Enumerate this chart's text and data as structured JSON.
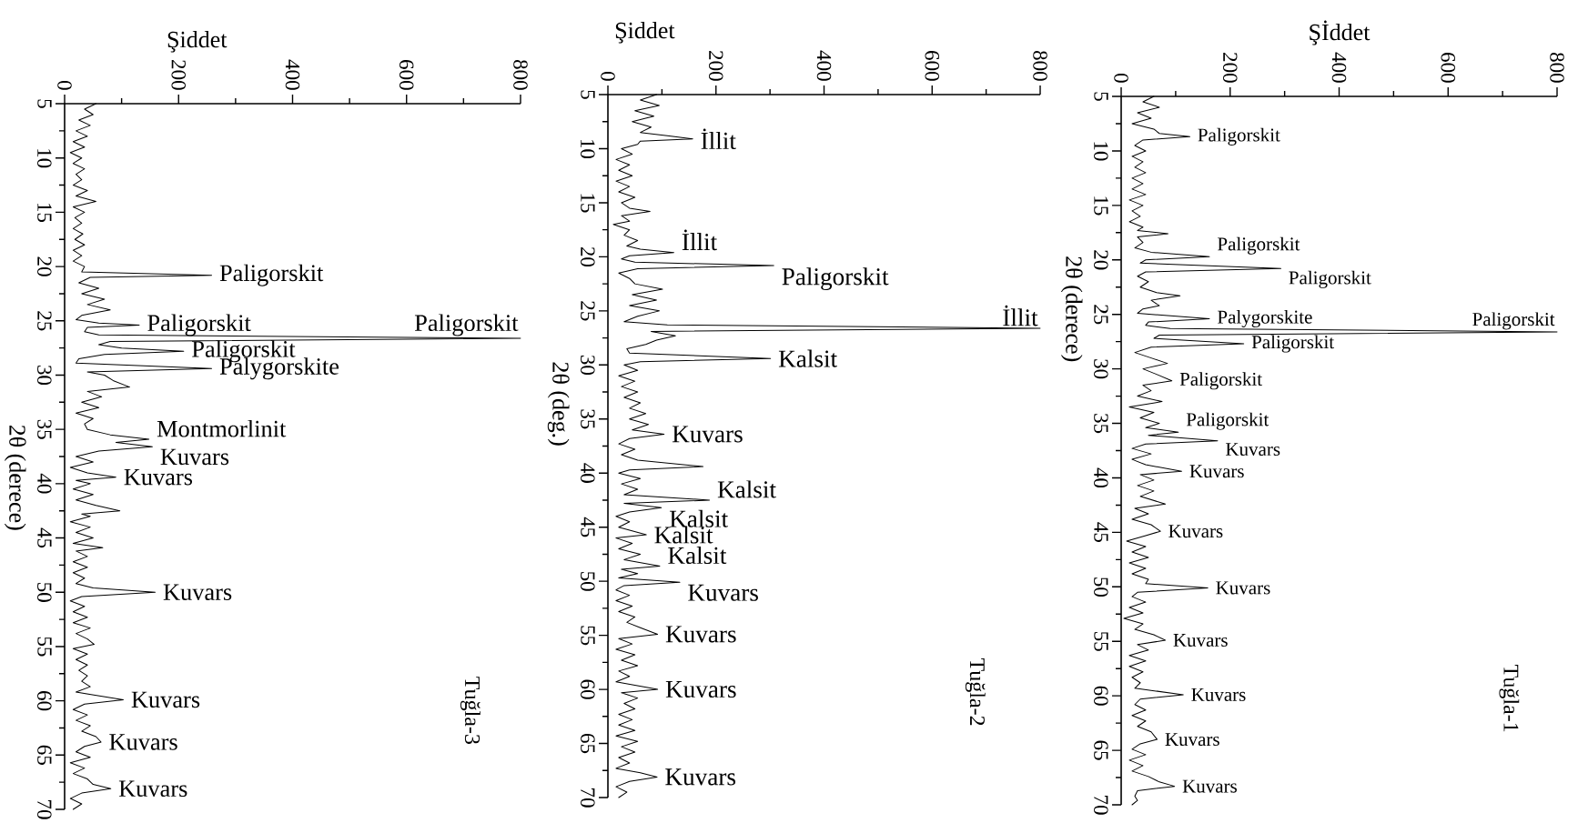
{
  "chart_data": [
    {
      "type": "line",
      "xlabel": "Şiddet",
      "ylabel": "2θ (derece)",
      "xlim": [
        0,
        800
      ],
      "ylim": [
        70,
        5
      ],
      "marker": "none",
      "line_style": "solid",
      "xticks": [
        {
          "value": 0,
          "label": "0"
        },
        {
          "value": 100,
          "label": null
        },
        {
          "value": 200,
          "label": "200"
        },
        {
          "value": 300,
          "label": null
        },
        {
          "value": 400,
          "label": "400"
        },
        {
          "value": 500,
          "label": null
        },
        {
          "value": 600,
          "label": "600"
        },
        {
          "value": 700,
          "label": null
        },
        {
          "value": 800,
          "label": "800"
        }
      ],
      "yticks": [
        {
          "value": 5,
          "label": "5"
        },
        {
          "value": 7.5,
          "label": null
        },
        {
          "value": 10,
          "label": "10"
        },
        {
          "value": 12.5,
          "label": null
        },
        {
          "value": 15,
          "label": "15"
        },
        {
          "value": 17.5,
          "label": null
        },
        {
          "value": 20,
          "label": "20"
        },
        {
          "value": 22.5,
          "label": null
        },
        {
          "value": 25,
          "label": "25"
        },
        {
          "value": 27.5,
          "label": null
        },
        {
          "value": 30,
          "label": "30"
        },
        {
          "value": 32.5,
          "label": null
        },
        {
          "value": 35,
          "label": "35"
        },
        {
          "value": 37.5,
          "label": null
        },
        {
          "value": 40,
          "label": "40"
        },
        {
          "value": 42.5,
          "label": null
        },
        {
          "value": 45,
          "label": "45"
        },
        {
          "value": 47.5,
          "label": null
        },
        {
          "value": 50,
          "label": "50"
        },
        {
          "value": 52.5,
          "label": null
        },
        {
          "value": 55,
          "label": "55"
        },
        {
          "value": 57.5,
          "label": null
        },
        {
          "value": 60,
          "label": "60"
        },
        {
          "value": 62.5,
          "label": null
        },
        {
          "value": 65,
          "label": "65"
        },
        {
          "value": 67.5,
          "label": null
        },
        {
          "value": 70,
          "label": "70"
        }
      ],
      "series": [
        {
          "color": "#000000",
          "values": [
            5,
            5.5,
            6,
            6.5,
            7,
            7.5,
            8,
            8.5,
            9,
            9.5,
            10,
            10.5,
            11,
            11.5,
            12,
            12.5,
            13,
            13.5,
            14,
            14.5,
            15,
            15.5,
            16,
            16.5,
            17,
            17.5,
            18,
            18.5,
            19,
            19.5,
            20,
            20.5,
            20.8,
            21,
            21.5,
            22,
            22.5,
            23,
            23.5,
            24,
            24.5,
            24.9,
            25.2,
            25.4,
            25.6,
            26,
            26.3,
            26.6,
            26.9,
            27.2,
            27.5,
            27.8,
            28.1,
            28.5,
            28.9,
            29.4,
            29.7,
            30,
            30.5,
            31.1,
            31.5,
            32,
            32.5,
            33,
            33.5,
            34,
            34.5,
            35,
            35.5,
            35.9,
            36.2,
            36.6,
            37,
            37.5,
            38,
            38.5,
            39,
            39.4,
            39.7,
            40,
            40.5,
            41,
            41.5,
            42,
            42.5,
            42.8,
            43,
            43.5,
            44,
            44.5,
            45,
            45.5,
            45.9,
            46.2,
            46.7,
            47.2,
            47.7,
            48.2,
            48.7,
            49.2,
            49.6,
            50,
            50.4,
            50.8,
            51.3,
            51.8,
            52.3,
            52.8,
            53.3,
            53.8,
            54.3,
            54.8,
            55.2,
            55.7,
            56.2,
            56.7,
            57.2,
            57.7,
            58.2,
            58.7,
            59.2,
            59.9,
            60.3,
            60.8,
            61.3,
            61.8,
            62.3,
            62.8,
            63.3,
            63.8,
            64.2,
            64.7,
            65.2,
            65.7,
            66.2,
            66.7,
            67.2,
            67.7,
            68.1,
            68.5,
            69,
            69.5,
            70
          ],
          "x": [
            55,
            35,
            50,
            25,
            45,
            20,
            40,
            15,
            35,
            10,
            30,
            15,
            35,
            20,
            30,
            15,
            40,
            20,
            55,
            15,
            35,
            18,
            30,
            15,
            32,
            18,
            35,
            15,
            30,
            15,
            35,
            30,
            258,
            45,
            25,
            60,
            30,
            70,
            40,
            80,
            30,
            20,
            60,
            131,
            40,
            35,
            60,
            800,
            80,
            60,
            100,
            209,
            70,
            25,
            20,
            258,
            40,
            70,
            85,
            114,
            40,
            65,
            30,
            60,
            20,
            50,
            35,
            40,
            80,
            148,
            90,
            154,
            60,
            20,
            50,
            10,
            40,
            90,
            20,
            45,
            15,
            50,
            20,
            55,
            97,
            30,
            45,
            10,
            45,
            20,
            50,
            15,
            67,
            20,
            40,
            15,
            40,
            15,
            35,
            20,
            50,
            159,
            30,
            10,
            35,
            15,
            40,
            15,
            45,
            20,
            40,
            52,
            15,
            40,
            20,
            40,
            25,
            40,
            30,
            45,
            20,
            103,
            35,
            15,
            40,
            20,
            45,
            30,
            55,
            64,
            35,
            20,
            45,
            10,
            35,
            15,
            40,
            50,
            81,
            30,
            10,
            30,
            15
          ]
        }
      ],
      "annotations": [
        {
          "text": "Paligorskit",
          "x": 258,
          "y": 20.8
        },
        {
          "text": "Paligorskit",
          "x": 131,
          "y": 25.4
        },
        {
          "text": "Paligorskit",
          "x": 800,
          "y": 26.6
        },
        {
          "text": "Paligorskit",
          "x": 209,
          "y": 27.8
        },
        {
          "text": "Palygorskite",
          "x": 258,
          "y": 29.4
        },
        {
          "text": "Montmorlinit",
          "x": 148,
          "y": 35.9
        },
        {
          "text": "Kuvars",
          "x": 154,
          "y": 36.6
        },
        {
          "text": "Kuvars",
          "x": 90,
          "y": 39.4
        },
        {
          "text": "Kuvars",
          "x": 159,
          "y": 50
        },
        {
          "text": "Kuvars",
          "x": 103,
          "y": 59.9
        },
        {
          "text": "Kuvars",
          "x": 64,
          "y": 63.8
        },
        {
          "text": "Kuvars",
          "x": 81,
          "y": 68.1
        },
        "Tuğla-3"
      ]
    },
    {
      "type": "line",
      "xlabel": "Şiddet",
      "ylabel": "2θ (deg.)",
      "xlim": [
        0,
        800
      ],
      "ylim": [
        70,
        5
      ],
      "marker": "none",
      "line_style": "solid",
      "xticks": [
        {
          "value": 0,
          "label": "0"
        },
        {
          "value": 100,
          "label": null
        },
        {
          "value": 200,
          "label": "200"
        },
        {
          "value": 300,
          "label": null
        },
        {
          "value": 400,
          "label": "400"
        },
        {
          "value": 500,
          "label": null
        },
        {
          "value": 600,
          "label": "600"
        },
        {
          "value": 700,
          "label": null
        },
        {
          "value": 800,
          "label": "800"
        }
      ],
      "yticks": [
        {
          "value": 5,
          "label": "5"
        },
        {
          "value": 7.5,
          "label": null
        },
        {
          "value": 10,
          "label": "10"
        },
        {
          "value": 12.5,
          "label": null
        },
        {
          "value": 15,
          "label": "15"
        },
        {
          "value": 17.5,
          "label": null
        },
        {
          "value": 20,
          "label": "20"
        },
        {
          "value": 22.5,
          "label": null
        },
        {
          "value": 25,
          "label": "25"
        },
        {
          "value": 27.5,
          "label": null
        },
        {
          "value": 30,
          "label": "30"
        },
        {
          "value": 32.5,
          "label": null
        },
        {
          "value": 35,
          "label": "35"
        },
        {
          "value": 37.5,
          "label": null
        },
        {
          "value": 40,
          "label": "40"
        },
        {
          "value": 42.5,
          "label": null
        },
        {
          "value": 45,
          "label": "45"
        },
        {
          "value": 47.5,
          "label": null
        },
        {
          "value": 50,
          "label": "50"
        },
        {
          "value": 52.5,
          "label": null
        },
        {
          "value": 55,
          "label": "55"
        },
        {
          "value": 57.5,
          "label": null
        },
        {
          "value": 60,
          "label": "60"
        },
        {
          "value": 62.5,
          "label": null
        },
        {
          "value": 65,
          "label": "65"
        },
        {
          "value": 67.5,
          "label": null
        },
        {
          "value": 70,
          "label": "70"
        }
      ],
      "series": [
        {
          "color": "#000000",
          "values": [
            5,
            5.5,
            6,
            6.5,
            7,
            7.5,
            8,
            8.5,
            8.8,
            9.1,
            9.3,
            9.6,
            10,
            10.5,
            11,
            11.5,
            12,
            12.5,
            13,
            13.5,
            14,
            14.5,
            15,
            15.5,
            15.8,
            16.2,
            16.7,
            17,
            17.5,
            18,
            18.5,
            19,
            19.3,
            19.6,
            19.9,
            20.2,
            20.5,
            20.8,
            21.1,
            21.5,
            22,
            22.5,
            23,
            23.5,
            24,
            24.5,
            25,
            25.5,
            26,
            26.3,
            26.6,
            26.9,
            27.3,
            27.7,
            28.1,
            28.5,
            28.9,
            29.4,
            29.7,
            30,
            30.5,
            31,
            31.5,
            32,
            32.5,
            33,
            33.5,
            34,
            34.5,
            35,
            35.5,
            36,
            36.4,
            36.8,
            37.3,
            37.8,
            38.3,
            38.8,
            39.4,
            39.7,
            40,
            40.5,
            41,
            41.5,
            42,
            42.5,
            42.8,
            43.2,
            43.6,
            44,
            44.5,
            45,
            45.7,
            46,
            46.5,
            47,
            47.5,
            48,
            48.6,
            48.9,
            49.3,
            49.7,
            50.1,
            50.4,
            50.8,
            51.3,
            51.8,
            52.3,
            52.8,
            53.3,
            53.8,
            54.3,
            54.9,
            55.3,
            55.8,
            56.3,
            56.8,
            57.3,
            57.8,
            58.3,
            58.8,
            59.3,
            60,
            60.3,
            60.8,
            61.3,
            61.8,
            62.3,
            62.8,
            63.3,
            63.8,
            64.3,
            64.8,
            65.3,
            65.8,
            66.3,
            66.8,
            67.3,
            67.7,
            68.1,
            68.5,
            69,
            69.5,
            70
          ],
          "x": [
            90,
            60,
            95,
            50,
            85,
            45,
            80,
            60,
            110,
            157,
            60,
            55,
            25,
            45,
            15,
            40,
            20,
            45,
            15,
            40,
            20,
            50,
            25,
            40,
            78,
            25,
            40,
            10,
            40,
            30,
            55,
            35,
            60,
            122,
            40,
            25,
            50,
            307,
            55,
            20,
            40,
            50,
            101,
            45,
            90,
            40,
            95,
            55,
            30,
            110,
            800,
            80,
            125,
            90,
            70,
            35,
            40,
            301,
            60,
            30,
            55,
            20,
            50,
            25,
            55,
            30,
            60,
            40,
            70,
            40,
            75,
            45,
            104,
            40,
            20,
            50,
            25,
            55,
            176,
            40,
            20,
            60,
            25,
            55,
            30,
            188,
            30,
            99,
            40,
            15,
            40,
            20,
            71,
            15,
            45,
            20,
            60,
            30,
            96,
            25,
            55,
            20,
            133,
            30,
            15,
            40,
            15,
            45,
            20,
            50,
            35,
            60,
            92,
            20,
            45,
            15,
            50,
            25,
            55,
            20,
            40,
            15,
            92,
            25,
            55,
            30,
            50,
            20,
            45,
            20,
            50,
            15,
            55,
            25,
            50,
            20,
            40,
            15,
            60,
            91,
            40,
            15,
            35,
            20
          ]
        }
      ],
      "annotations": [
        {
          "text": "İllit",
          "x": 157,
          "y": 9.1
        },
        {
          "text": "İllit",
          "x": 122,
          "y": 19.6
        },
        {
          "text": "Paligorskit",
          "x": 307,
          "y": 20.8
        },
        {
          "text": "İllit",
          "x": 800,
          "y": 26.6
        },
        {
          "text": "Kalsit",
          "x": 301,
          "y": 29.4
        },
        {
          "text": "Kuvars",
          "x": 104,
          "y": 36.4
        },
        {
          "text": "Kalsit",
          "x": 188,
          "y": 42.5
        },
        {
          "text": "Kalsit",
          "x": 99,
          "y": 43.2
        },
        {
          "text": "Kalsit",
          "x": 71,
          "y": 45.7
        },
        {
          "text": "Kalsit",
          "x": 96,
          "y": 48.6
        },
        {
          "text": "Kuvars",
          "x": 133,
          "y": 50.1
        },
        {
          "text": "Kuvars",
          "x": 92,
          "y": 54.9
        },
        {
          "text": "Kuvars",
          "x": 92,
          "y": 60
        },
        {
          "text": "Kuvars",
          "x": 91,
          "y": 68.1
        },
        "Tuğla-2"
      ]
    },
    {
      "type": "line",
      "xlabel": "Şİddet",
      "ylabel": "2θ (derece)",
      "xlim": [
        0,
        800
      ],
      "ylim": [
        70,
        5
      ],
      "marker": "none",
      "line_style": "solid",
      "xticks": [
        {
          "value": 0,
          "label": "0"
        },
        {
          "value": 100,
          "label": null
        },
        {
          "value": 200,
          "label": "200"
        },
        {
          "value": 300,
          "label": null
        },
        {
          "value": 400,
          "label": "400"
        },
        {
          "value": 500,
          "label": null
        },
        {
          "value": 600,
          "label": "600"
        },
        {
          "value": 700,
          "label": null
        },
        {
          "value": 800,
          "label": "800"
        }
      ],
      "yticks": [
        {
          "value": 5,
          "label": "5"
        },
        {
          "value": 7.5,
          "label": null
        },
        {
          "value": 10,
          "label": "10"
        },
        {
          "value": 12.5,
          "label": null
        },
        {
          "value": 15,
          "label": "15"
        },
        {
          "value": 17.5,
          "label": null
        },
        {
          "value": 20,
          "label": "20"
        },
        {
          "value": 22.5,
          "label": null
        },
        {
          "value": 25,
          "label": "25"
        },
        {
          "value": 27.5,
          "label": null
        },
        {
          "value": 30,
          "label": "30"
        },
        {
          "value": 32.5,
          "label": null
        },
        {
          "value": 35,
          "label": "35"
        },
        {
          "value": 37.5,
          "label": null
        },
        {
          "value": 40,
          "label": "40"
        },
        {
          "value": 42.5,
          "label": null
        },
        {
          "value": 45,
          "label": "45"
        },
        {
          "value": 47.5,
          "label": null
        },
        {
          "value": 50,
          "label": "50"
        },
        {
          "value": 52.5,
          "label": null
        },
        {
          "value": 55,
          "label": "55"
        },
        {
          "value": 57.5,
          "label": null
        },
        {
          "value": 60,
          "label": "60"
        },
        {
          "value": 62.5,
          "label": null
        },
        {
          "value": 65,
          "label": "65"
        },
        {
          "value": 67.5,
          "label": null
        },
        {
          "value": 70,
          "label": "70"
        }
      ],
      "series": [
        {
          "color": "#000000",
          "values": [
            5,
            5.5,
            6,
            6.5,
            7,
            7.5,
            8,
            8.4,
            8.7,
            9,
            9.5,
            10,
            10.5,
            11,
            11.5,
            12,
            12.5,
            13,
            13.5,
            14,
            14.5,
            15,
            15.5,
            16,
            16.5,
            17,
            17.3,
            17.6,
            17.9,
            18.4,
            18.9,
            19.3,
            19.7,
            20,
            20.3,
            20.8,
            21.1,
            21.5,
            22,
            22.5,
            23,
            23.3,
            23.7,
            24.2,
            24.5,
            24.9,
            25.4,
            25.7,
            26,
            26.3,
            26.6,
            26.9,
            27.2,
            27.7,
            28,
            28.5,
            29,
            29.5,
            30,
            30.5,
            31.1,
            31.5,
            32,
            32.5,
            33,
            33.5,
            34,
            34.5,
            35,
            35.4,
            35.8,
            36.1,
            36.6,
            36.9,
            37.3,
            37.8,
            38.3,
            38.8,
            39.4,
            39.7,
            40.2,
            40.7,
            41.2,
            41.7,
            42.4,
            42.8,
            43.3,
            43.8,
            44.3,
            44.9,
            45.3,
            45.8,
            46.3,
            46.8,
            47.3,
            47.8,
            48.3,
            48.8,
            49.3,
            49.7,
            50.1,
            50.5,
            50.9,
            51.4,
            51.9,
            52.4,
            52.9,
            53.4,
            53.9,
            54.4,
            54.9,
            55.3,
            55.8,
            56.3,
            56.8,
            57.3,
            57.8,
            58.3,
            58.8,
            59.3,
            59.9,
            60.3,
            60.8,
            61.3,
            61.8,
            62.3,
            62.8,
            63.3,
            64,
            64.4,
            64.9,
            65.4,
            65.9,
            66.4,
            66.9,
            67.4,
            67.9,
            68.3,
            68.7,
            69.2,
            69.6,
            70
          ],
          "x": [
            60,
            40,
            70,
            30,
            55,
            20,
            60,
            70,
            126,
            40,
            25,
            45,
            20,
            40,
            25,
            45,
            20,
            40,
            20,
            45,
            15,
            40,
            20,
            35,
            15,
            40,
            30,
            86,
            30,
            40,
            25,
            55,
            162,
            45,
            35,
            293,
            45,
            30,
            50,
            35,
            65,
            108,
            55,
            70,
            40,
            30,
            162,
            50,
            45,
            90,
            800,
            70,
            60,
            225,
            55,
            25,
            55,
            85,
            40,
            65,
            93,
            40,
            55,
            30,
            75,
            15,
            60,
            35,
            70,
            45,
            105,
            50,
            177,
            45,
            20,
            55,
            20,
            45,
            111,
            35,
            60,
            30,
            60,
            35,
            81,
            25,
            50,
            20,
            55,
            72,
            45,
            10,
            45,
            20,
            50,
            15,
            45,
            20,
            50,
            45,
            159,
            30,
            20,
            45,
            15,
            40,
            5,
            40,
            25,
            60,
            81,
            30,
            50,
            15,
            45,
            15,
            40,
            20,
            35,
            25,
            114,
            35,
            25,
            45,
            20,
            45,
            30,
            55,
            66,
            35,
            20,
            45,
            15,
            40,
            20,
            50,
            70,
            98,
            30,
            25,
            30,
            20
          ]
        }
      ],
      "annotations": [
        {
          "text": "Paligorskit",
          "x": 126,
          "y": 8.7
        },
        {
          "text": "Paligorskit",
          "x": 162,
          "y": 19.7
        },
        {
          "text": "Paligorskit",
          "x": 293,
          "y": 20.8
        },
        {
          "text": "Palygorskite",
          "x": 162,
          "y": 25.4
        },
        {
          "text": "Paligorskit",
          "x": 800,
          "y": 26.6
        },
        {
          "text": "Paligorskit",
          "x": 225,
          "y": 27.7
        },
        {
          "text": "Paligorskit",
          "x": 93,
          "y": 31.1
        },
        {
          "text": "Paligorskit",
          "x": 105,
          "y": 35.8
        },
        {
          "text": "Kuvars",
          "x": 177,
          "y": 36.6
        },
        {
          "text": "Kuvars",
          "x": 111,
          "y": 39.4
        },
        {
          "text": "Kuvars",
          "x": 72,
          "y": 44.9
        },
        {
          "text": "Kuvars",
          "x": 159,
          "y": 50.1
        },
        {
          "text": "Kuvars",
          "x": 81,
          "y": 54.9
        },
        {
          "text": "Kuvars",
          "x": 114,
          "y": 59.9
        },
        {
          "text": "Kuvars",
          "x": 66,
          "y": 64
        },
        {
          "text": "Kuvars",
          "x": 98,
          "y": 68.3
        },
        "Tuğla-1"
      ]
    }
  ]
}
